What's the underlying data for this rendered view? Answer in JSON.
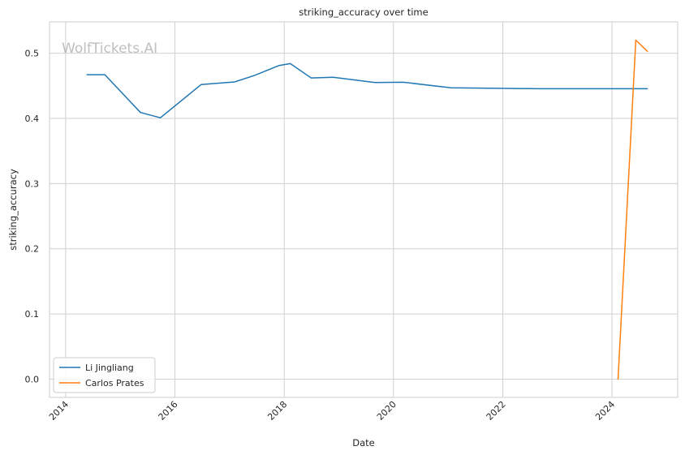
{
  "chart_data": {
    "type": "line",
    "title": "striking_accuracy over time",
    "xlabel": "Date",
    "ylabel": "striking_accuracy",
    "watermark": "WolfTickets.AI",
    "x_range": [
      "2013-09-15",
      "2025-03-15"
    ],
    "ylim": [
      -0.028,
      0.548
    ],
    "x_ticks": [
      "2014",
      "2016",
      "2018",
      "2020",
      "2022",
      "2024"
    ],
    "x_tick_dates": [
      "2014-01-01",
      "2016-01-01",
      "2018-01-01",
      "2020-01-01",
      "2022-01-01",
      "2024-01-01"
    ],
    "y_ticks": [
      "0.0",
      "0.1",
      "0.2",
      "0.3",
      "0.4",
      "0.5"
    ],
    "y_tick_values": [
      0.0,
      0.1,
      0.2,
      0.3,
      0.4,
      0.5
    ],
    "grid": true,
    "legend_position": "lower-left",
    "series": [
      {
        "name": "Li Jingliang",
        "color": "#1f77b4",
        "points": [
          [
            "2014-05-24",
            0.467
          ],
          [
            "2014-09-20",
            0.467
          ],
          [
            "2015-05-16",
            0.409
          ],
          [
            "2015-09-26",
            0.401
          ],
          [
            "2016-06-25",
            0.452
          ],
          [
            "2017-02-04",
            0.456
          ],
          [
            "2017-06-17",
            0.466
          ],
          [
            "2017-11-25",
            0.481
          ],
          [
            "2018-02-10",
            0.484
          ],
          [
            "2018-06-30",
            0.462
          ],
          [
            "2018-11-24",
            0.463
          ],
          [
            "2019-08-31",
            0.455
          ],
          [
            "2020-03-07",
            0.4555
          ],
          [
            "2021-01-20",
            0.447
          ],
          [
            "2022-09-10",
            0.4455
          ],
          [
            "2024-08-24",
            0.4455
          ]
        ]
      },
      {
        "name": "Carlos Prates",
        "color": "#ff7f0e",
        "points": [
          [
            "2024-02-10",
            0.0
          ],
          [
            "2024-06-08",
            0.52
          ],
          [
            "2024-08-24",
            0.503
          ]
        ]
      }
    ]
  }
}
